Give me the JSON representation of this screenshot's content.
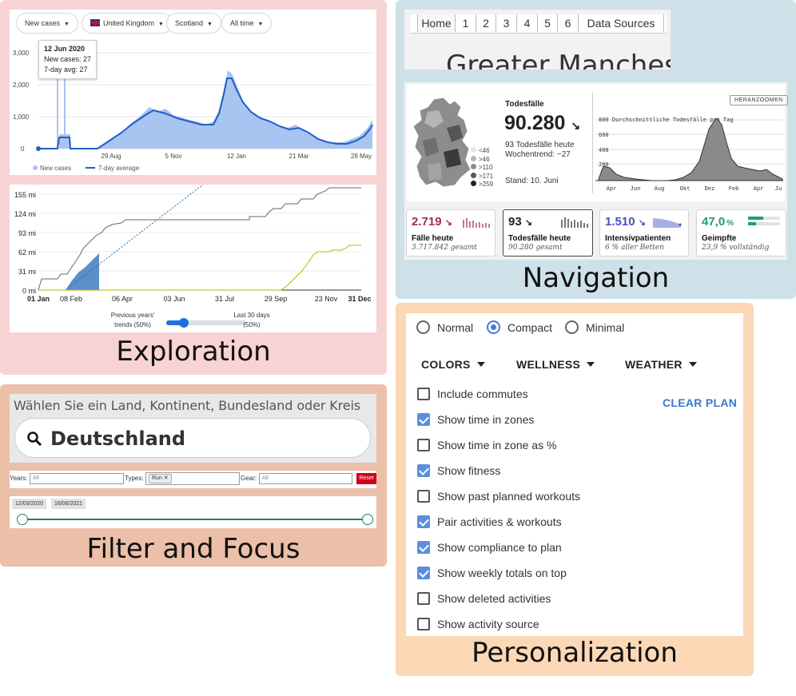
{
  "exploration": {
    "title": "Exploration",
    "covid_chart": {
      "dropdowns": [
        "New cases",
        "United Kingdom",
        "Scotland",
        "All time"
      ],
      "tooltip": {
        "date": "12 Jun 2020",
        "new_cases": "New cases: 27",
        "avg": "7-day avg: 27"
      },
      "yticks": [
        "3,000",
        "2,000",
        "1,000",
        "0"
      ],
      "xticks": [
        "29 Aug",
        "5 Nov",
        "12 Jan",
        "21 Mar",
        "28 May"
      ],
      "legend": [
        "New cases",
        "7-day average"
      ],
      "colors": {
        "bars": "#a8c4f0",
        "line": "#1f5fc6"
      }
    },
    "distance_chart": {
      "yticks": [
        "155 mi",
        "124 mi",
        "93 mi",
        "62 mi",
        "31 mi",
        "0 mi"
      ],
      "xticks": [
        "01 Jan",
        "08 Feb",
        "06 Apr",
        "03 Jun",
        "31 Jul",
        "29 Sep",
        "23 Nov",
        "31 Dec"
      ],
      "slider_left": "Previous years' trends (50%)",
      "slider_left_line1": "Previous years'",
      "slider_left_line2": "trends (50%)",
      "slider_right_line1": "Last 30 days",
      "slider_right_line2": "(50%)"
    }
  },
  "filter": {
    "title": "Filter and Focus",
    "search_prompt": "Wählen Sie ein Land, Kontinent, Bundesland oder Kreis",
    "search_value": "Deutschland",
    "years_label": "Years:",
    "years_value": "All",
    "types_label": "Types:",
    "types_chip": "Run",
    "gear_label": "Gear:",
    "gear_value": "All",
    "reset_label": "Reset",
    "date_start": "12/03/2020",
    "date_end": "16/06/2021"
  },
  "navigation": {
    "title": "Navigation",
    "tabs": [
      "Home",
      "1",
      "2",
      "3",
      "4",
      "5",
      "6",
      "Data Sources"
    ],
    "heading_partial": "Greater Mancheste",
    "todesfaelle": {
      "label": "Todesfälle",
      "value": "90.280",
      "today": "93 Todesfälle heute",
      "trend": "Wochentrend: −27",
      "stand": "Stand: 10. Juni",
      "map_legend": [
        "<46",
        ">46",
        ">110",
        ">171",
        ">259"
      ],
      "zoom_button": "HERANZOOMEN",
      "chart_label": "800 Durchschnittliche Todesfälle pro Tag",
      "yticks": [
        "600",
        "400",
        "200"
      ],
      "xticks": [
        "Apr",
        "Jun",
        "Aug",
        "Okt",
        "Dez",
        "Feb",
        "Apr",
        "Ju"
      ]
    },
    "stats": [
      {
        "value": "2.719",
        "label": "Fälle heute",
        "sub": "3.717.842 gesamt",
        "color": "#9c2d5c"
      },
      {
        "value": "93",
        "label": "Todesfälle heute",
        "sub": "90.280 gesamt",
        "color": "#222222"
      },
      {
        "value": "1.510",
        "label": "Intensivpatienten",
        "sub": "6 % aller Betten",
        "color": "#4a4fb8"
      },
      {
        "value": "47,0",
        "label": "Geimpfte",
        "sub": "23,9 % vollständig",
        "color": "#1f9e6e"
      }
    ]
  },
  "personalization": {
    "title": "Personalization",
    "radios": [
      {
        "label": "Normal",
        "selected": false
      },
      {
        "label": "Compact",
        "selected": true
      },
      {
        "label": "Minimal",
        "selected": false
      }
    ],
    "menus": [
      "COLORS",
      "WELLNESS",
      "WEATHER"
    ],
    "clear_plan": "CLEAR PLAN",
    "options": [
      {
        "label": "Include commutes",
        "checked": false
      },
      {
        "label": "Show time in zones",
        "checked": true
      },
      {
        "label": "Show time in zone as %",
        "checked": false
      },
      {
        "label": "Show fitness",
        "checked": true
      },
      {
        "label": "Show past planned workouts",
        "checked": false
      },
      {
        "label": "Pair activities & workouts",
        "checked": true
      },
      {
        "label": "Show compliance to plan",
        "checked": true
      },
      {
        "label": "Show weekly totals on top",
        "checked": true
      },
      {
        "label": "Show deleted activities",
        "checked": false
      },
      {
        "label": "Show activity source",
        "checked": false
      }
    ]
  }
}
